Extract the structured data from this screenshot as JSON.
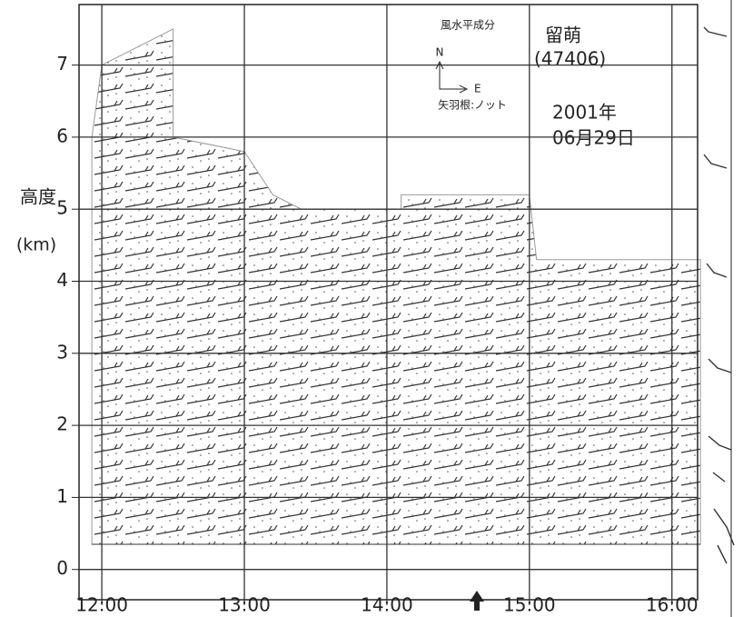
{
  "chart_data": {
    "type": "wind-profile",
    "y_label_top": "高度",
    "y_label_unit": "(km)",
    "annotations": {
      "legend_title": "風水平成分",
      "north": "N",
      "east": "E",
      "barb_unit": "矢羽根:ノット",
      "station": "留萌",
      "station_id": "(47406)",
      "year": "2001年",
      "date": "06月29日"
    },
    "x": [
      11.93,
      12.0,
      12.5,
      12.5,
      13.0,
      13.2,
      13.4,
      14.1,
      14.1,
      15.0,
      15.05,
      16.2
    ],
    "top": [
      6.0,
      7.0,
      7.5,
      6.0,
      5.8,
      5.2,
      5.0,
      5.0,
      5.2,
      5.2,
      4.3,
      4.3
    ],
    "area_bottom": 0.35,
    "color": "#9a9a9a",
    "xlim": [
      11.84,
      16.18
    ],
    "ylim": [
      -0.42,
      7.84
    ],
    "xticks": [
      {
        "value": 12,
        "label": "12:00"
      },
      {
        "value": 13,
        "label": "13:00"
      },
      {
        "value": 14,
        "label": "14:00"
      },
      {
        "value": 15,
        "label": "15:00"
      },
      {
        "value": 16,
        "label": "16:00"
      }
    ],
    "yticks": [
      0,
      1,
      2,
      3,
      4,
      5,
      6,
      7
    ],
    "grid": true
  }
}
